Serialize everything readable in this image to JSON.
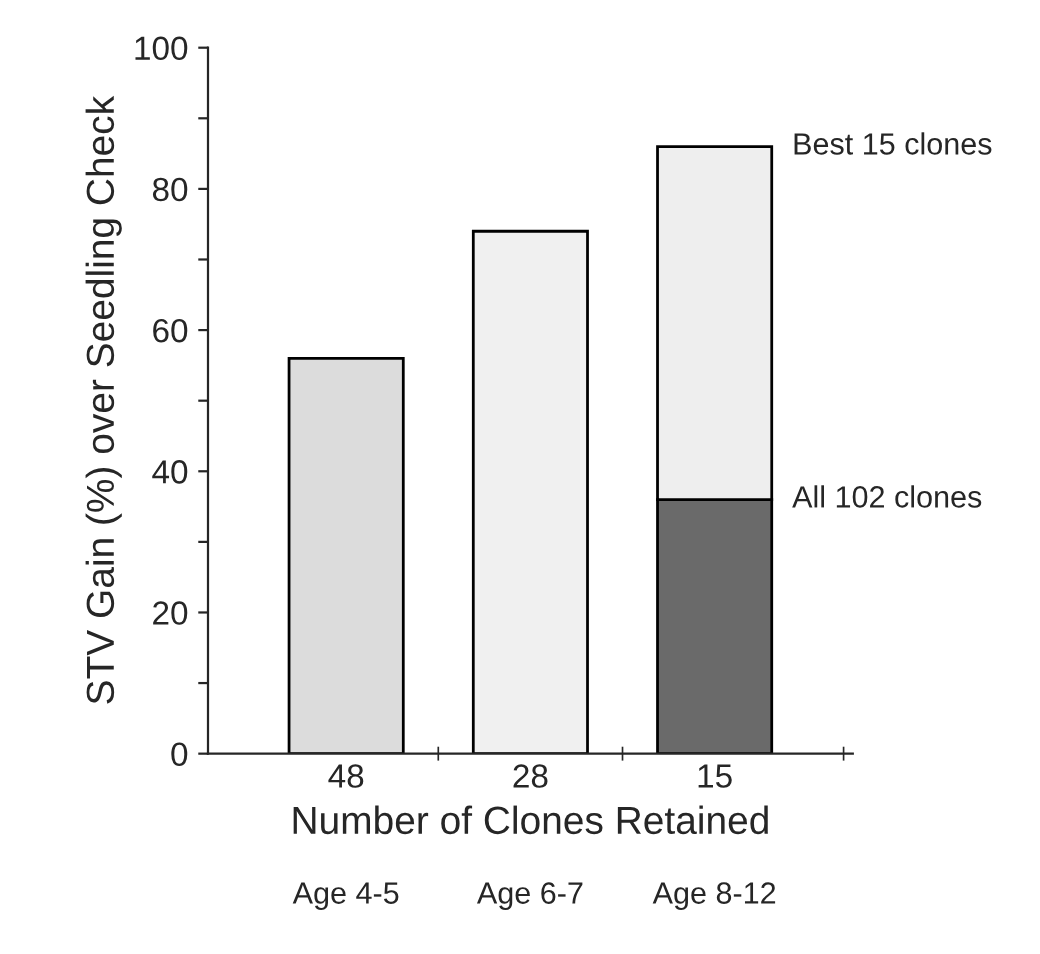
{
  "chart_data": {
    "type": "bar",
    "stacked": true,
    "xlabel": "Number of Clones Retained",
    "ylabel": "STV Gain (%) over Seedling Check",
    "categories": [
      "48",
      "28",
      "15"
    ],
    "series": [
      {
        "colors": [
          "#dcdcdc",
          "#f0f0f0",
          "#6a6a6a"
        ],
        "values": [
          56,
          74,
          36
        ]
      },
      {
        "colors": [
          "#f4f4f4",
          "#f4f4f4",
          "#eeeeee"
        ],
        "values": [
          null,
          null,
          50
        ]
      }
    ],
    "ylim": [
      0,
      100
    ],
    "yticks": [
      0,
      {
        "value": 10,
        "label": null
      },
      20,
      {
        "value": 30,
        "label": null
      },
      40,
      {
        "value": 50,
        "label": null
      },
      60,
      {
        "value": 70,
        "label": null
      },
      80,
      {
        "value": 90,
        "label": null
      },
      100
    ],
    "grid": false,
    "annotations": [
      {
        "text": "Best 15 clones",
        "x": "15",
        "y": 86
      },
      {
        "text": "All 102 clones",
        "x": "15",
        "y": 36
      },
      "Age 4-5",
      "Age 6-7",
      "Age 8-12"
    ]
  }
}
